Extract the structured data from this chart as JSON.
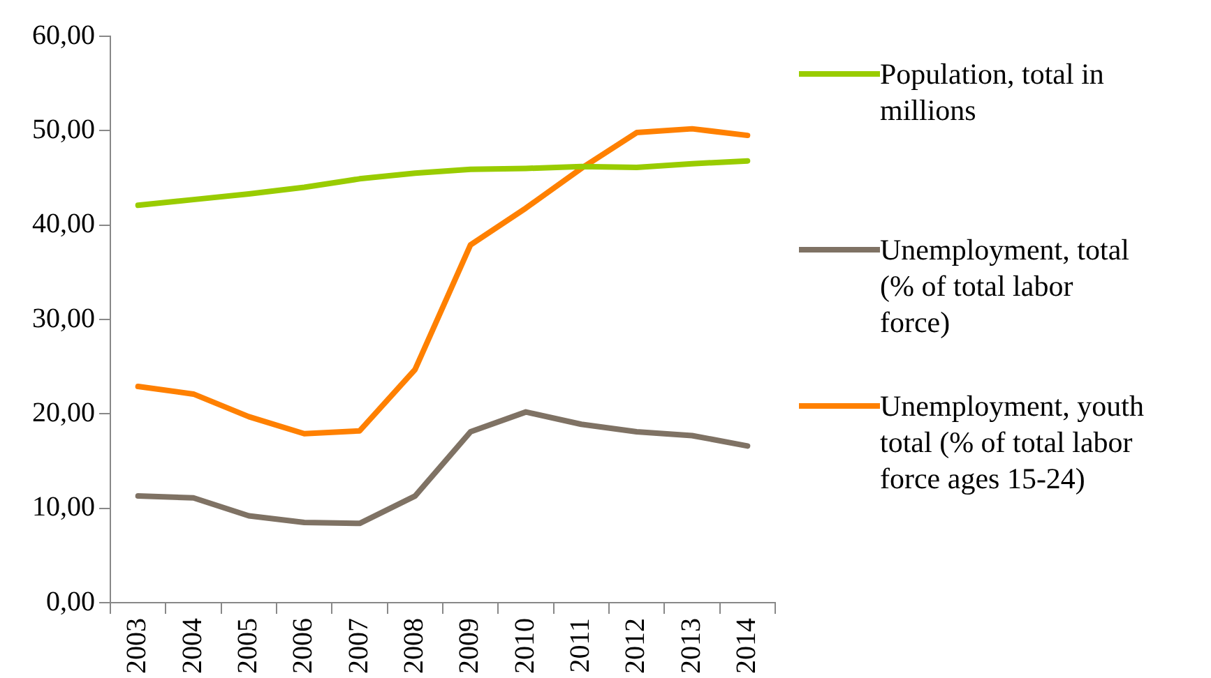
{
  "chart_data": {
    "type": "line",
    "categories": [
      "2003",
      "2004",
      "2005",
      "2006",
      "2007",
      "2008",
      "2009",
      "2010",
      "2011",
      "2012",
      "2013",
      "2014"
    ],
    "series": [
      {
        "name": "Population, total in millions",
        "color": "#99cc00",
        "values": [
          42.1,
          42.7,
          43.3,
          44.0,
          44.9,
          45.5,
          45.9,
          46.0,
          46.2,
          46.1,
          46.5,
          46.8
        ]
      },
      {
        "name": "Unemployment, total (% of total labor force)",
        "color": "#7f7264",
        "values": [
          11.3,
          11.1,
          9.2,
          8.5,
          8.4,
          11.3,
          18.1,
          20.2,
          18.9,
          18.1,
          17.7,
          16.6
        ]
      },
      {
        "name": "Unemployment, youth total (% of total labor force ages 15-24)",
        "color": "#ff8000",
        "values": [
          22.9,
          22.1,
          19.7,
          17.9,
          18.2,
          24.7,
          37.9,
          41.8,
          46.0,
          49.8,
          50.2,
          49.5
        ]
      }
    ],
    "ylim": [
      0,
      60
    ],
    "yticks": [
      {
        "value": 0,
        "label": "0,00"
      },
      {
        "value": 10,
        "label": "10,00"
      },
      {
        "value": 20,
        "label": "20,00"
      },
      {
        "value": 30,
        "label": "30,00"
      },
      {
        "value": 40,
        "label": "40,00"
      },
      {
        "value": 50,
        "label": "50,00"
      },
      {
        "value": 60,
        "label": "60,00"
      }
    ],
    "grid": false,
    "legend": "right",
    "marker": "none",
    "line_style": "solid"
  }
}
